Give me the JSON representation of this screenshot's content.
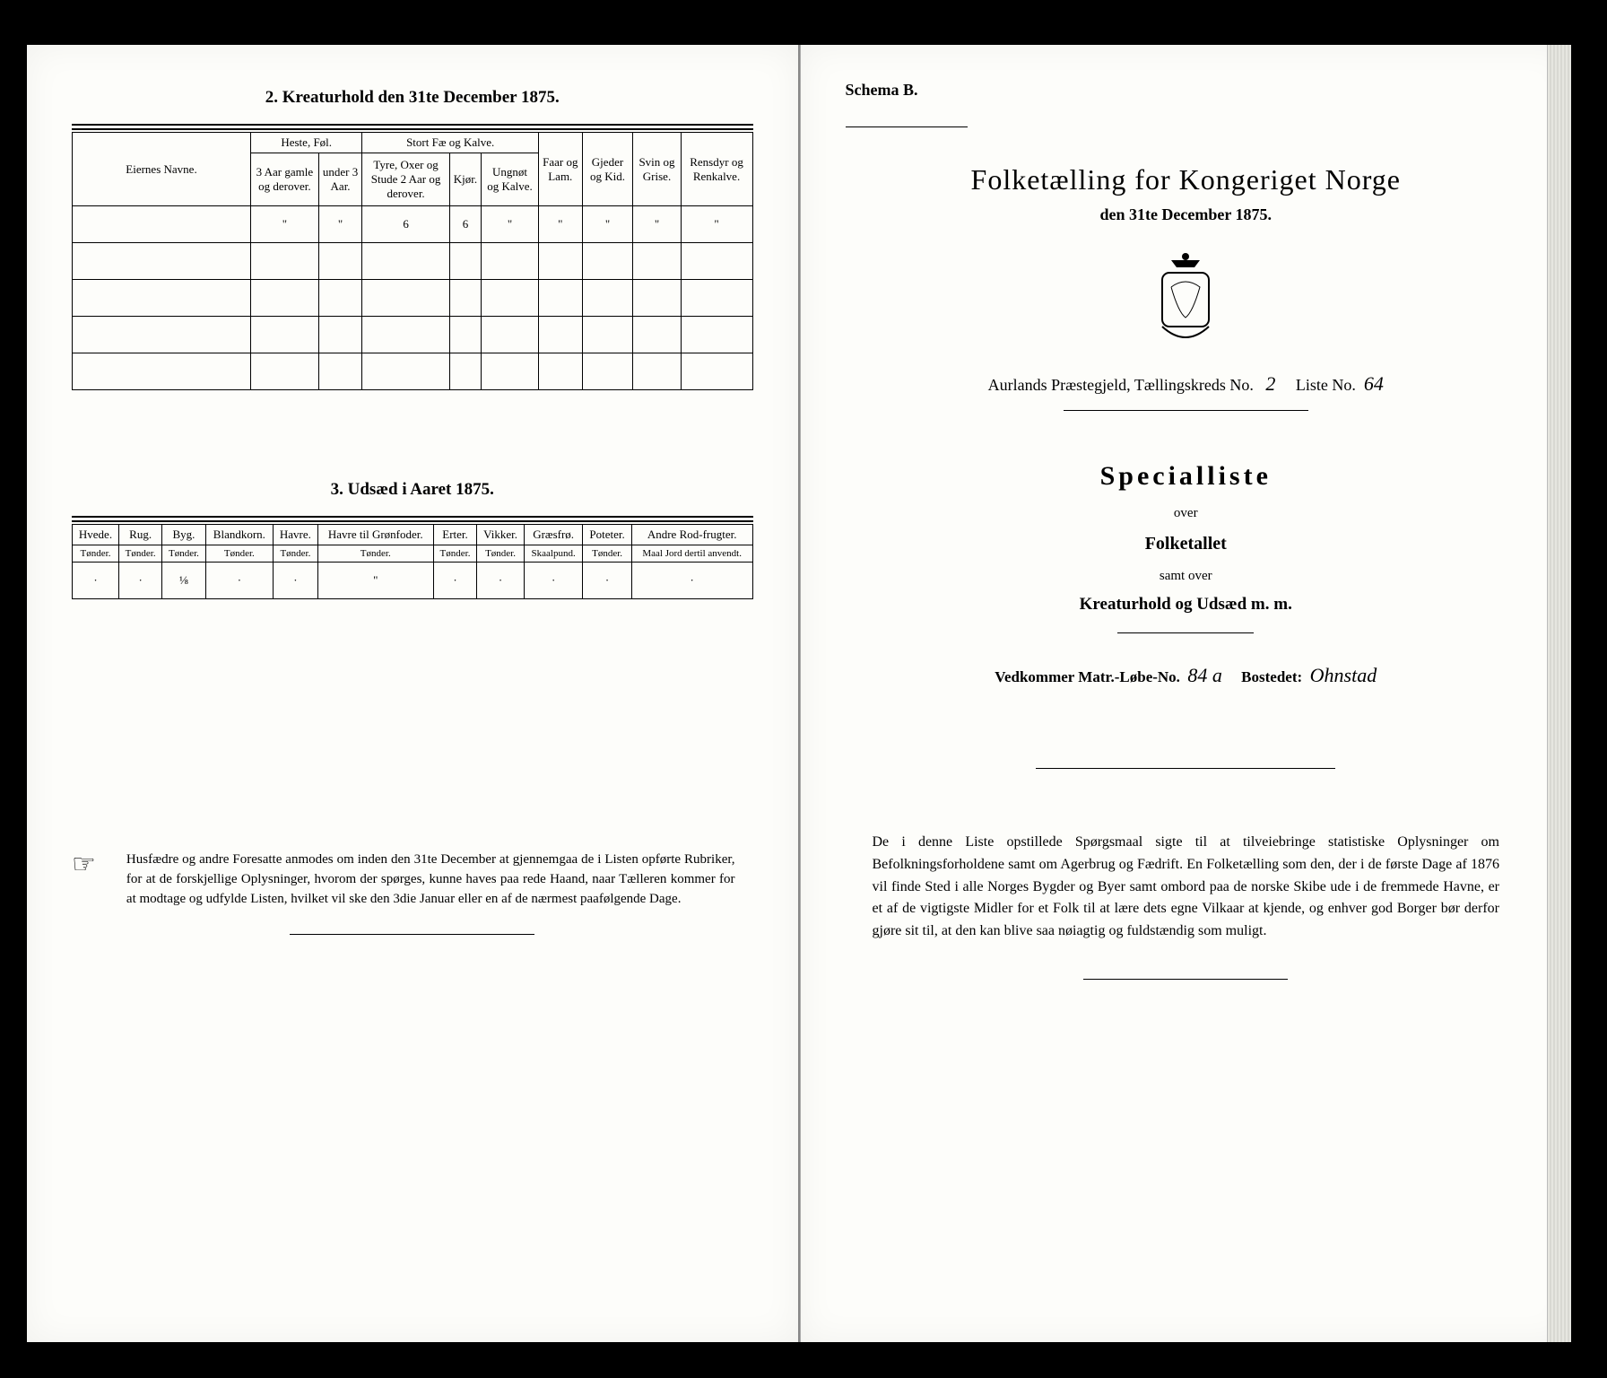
{
  "left": {
    "section2_title": "2. Kreaturhold den 31te December 1875.",
    "table2": {
      "owners_label": "Eiernes Navne.",
      "group_heste": "Heste, Føl.",
      "group_stort": "Stort Fæ og Kalve.",
      "col_heste_a": "3 Aar gamle og derover.",
      "col_heste_b": "under 3 Aar.",
      "col_stort_a": "Tyre, Oxer og Stude 2 Aar og derover.",
      "col_stort_b": "Kjør.",
      "col_stort_c": "Ungnøt og Kalve.",
      "col_faar": "Faar og Lam.",
      "col_gjeder": "Gjeder og Kid.",
      "col_svin": "Svin og Grise.",
      "col_ren": "Rensdyr og Renkalve.",
      "row1": [
        "\"",
        "\"",
        "6",
        "6",
        "\"",
        "\"",
        "\"",
        "\"",
        "\""
      ]
    },
    "section3_title": "3. Udsæd i Aaret 1875.",
    "table3": {
      "cols": [
        {
          "h": "Hvede.",
          "u": "Tønder."
        },
        {
          "h": "Rug.",
          "u": "Tønder."
        },
        {
          "h": "Byg.",
          "u": "Tønder."
        },
        {
          "h": "Blandkorn.",
          "u": "Tønder."
        },
        {
          "h": "Havre.",
          "u": "Tønder."
        },
        {
          "h": "Havre til Grønfoder.",
          "u": "Tønder."
        },
        {
          "h": "Erter.",
          "u": "Tønder."
        },
        {
          "h": "Vikker.",
          "u": "Tønder."
        },
        {
          "h": "Græsfrø.",
          "u": "Skaalpund."
        },
        {
          "h": "Poteter.",
          "u": "Tønder."
        },
        {
          "h": "Andre Rod-frugter.",
          "u": "Maal Jord dertil anvendt."
        }
      ],
      "row1": [
        "·",
        "·",
        "⅛",
        "·",
        "·",
        "\"",
        "·",
        "·",
        "·",
        "·",
        "·"
      ]
    },
    "notice": "Husfædre og andre Foresatte anmodes om inden den 31te December at gjennemgaa de i Listen opførte Rubriker, for at de forskjellige Oplysninger, hvorom der spørges, kunne haves paa rede Haand, naar Tælleren kommer for at modtage og udfylde Listen, hvilket vil ske den 3die Januar eller en af de nærmest paafølgende Dage."
  },
  "right": {
    "schema": "Schema B.",
    "title": "Folketælling for Kongeriget Norge",
    "subtitle": "den 31te December 1875.",
    "praeste_line_a": "Aurlands Præstegjeld, Tællingskreds No.",
    "kreds_no": "2",
    "liste_lbl": "Liste No.",
    "liste_no": "64",
    "spec": "Specialliste",
    "over": "over",
    "folketallet": "Folketallet",
    "samt": "samt over",
    "kreatur": "Kreaturhold og Udsæd m. m.",
    "vedk_lbl": "Vedkommer Matr.-Løbe-No.",
    "matr_no": "84 a",
    "bostedet_lbl": "Bostedet:",
    "bostedet": "Ohnstad",
    "body": "De i denne Liste opstillede Spørgsmaal sigte til at tilveiebringe statistiske Oplysninger om Befolkningsforholdene samt om Agerbrug og Fædrift. En Folketælling som den, der i de første Dage af 1876 vil finde Sted i alle Norges Bygder og Byer samt ombord paa de norske Skibe ude i de fremmede Havne, er et af de vigtigste Midler for et Folk til at lære dets egne Vilkaar at kjende, og enhver god Borger bør derfor gjøre sit til, at den kan blive saa nøiagtig og fuldstændig som muligt."
  }
}
